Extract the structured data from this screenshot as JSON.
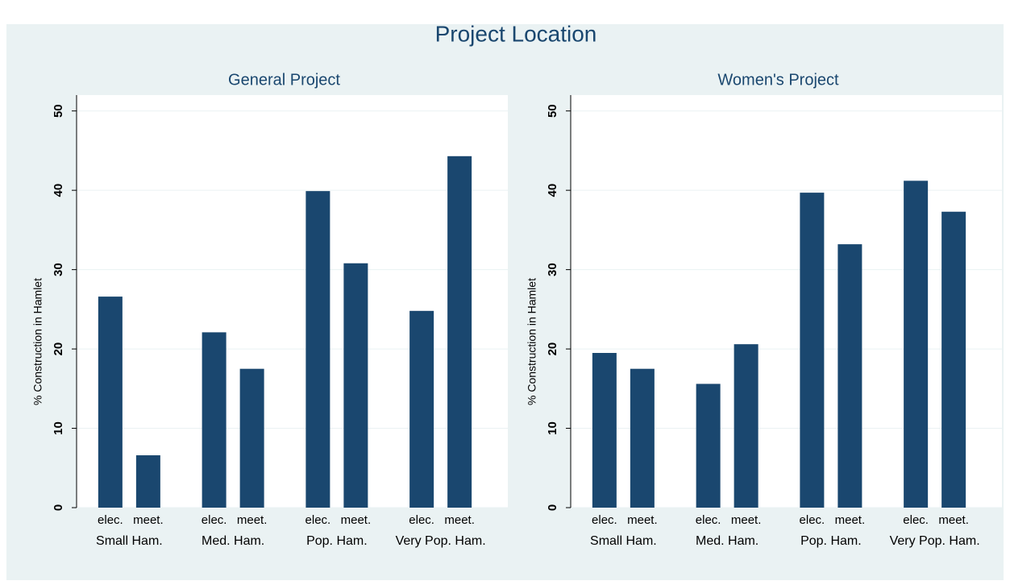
{
  "title": "Project Location",
  "chart_data": [
    {
      "type": "bar",
      "title": "General Project",
      "ylabel": "% Construction in Hamlet",
      "groups": [
        "Small Ham.",
        "Med. Ham.",
        "Pop. Ham.",
        "Very Pop. Ham."
      ],
      "subcategories": [
        "elec.",
        "meet."
      ],
      "values": [
        [
          26.6,
          6.6
        ],
        [
          22.1,
          17.5
        ],
        [
          39.9,
          30.8
        ],
        [
          24.8,
          44.3
        ]
      ],
      "color": "#1a476f",
      "ylim": [
        0,
        52
      ],
      "yticks": [
        0,
        10,
        20,
        30,
        40,
        50
      ],
      "grid": true
    },
    {
      "type": "bar",
      "title": "Women's Project",
      "ylabel": "% Construction in Hamlet",
      "groups": [
        "Small Ham.",
        "Med. Ham.",
        "Pop. Ham.",
        "Very Pop. Ham."
      ],
      "subcategories": [
        "elec.",
        "meet."
      ],
      "values": [
        [
          19.5,
          17.5
        ],
        [
          15.6,
          20.6
        ],
        [
          39.7,
          33.2
        ],
        [
          41.2,
          37.3
        ]
      ],
      "color": "#1a476f",
      "ylim": [
        0,
        52
      ],
      "yticks": [
        0,
        10,
        20,
        30,
        40,
        50
      ],
      "grid": true
    }
  ]
}
